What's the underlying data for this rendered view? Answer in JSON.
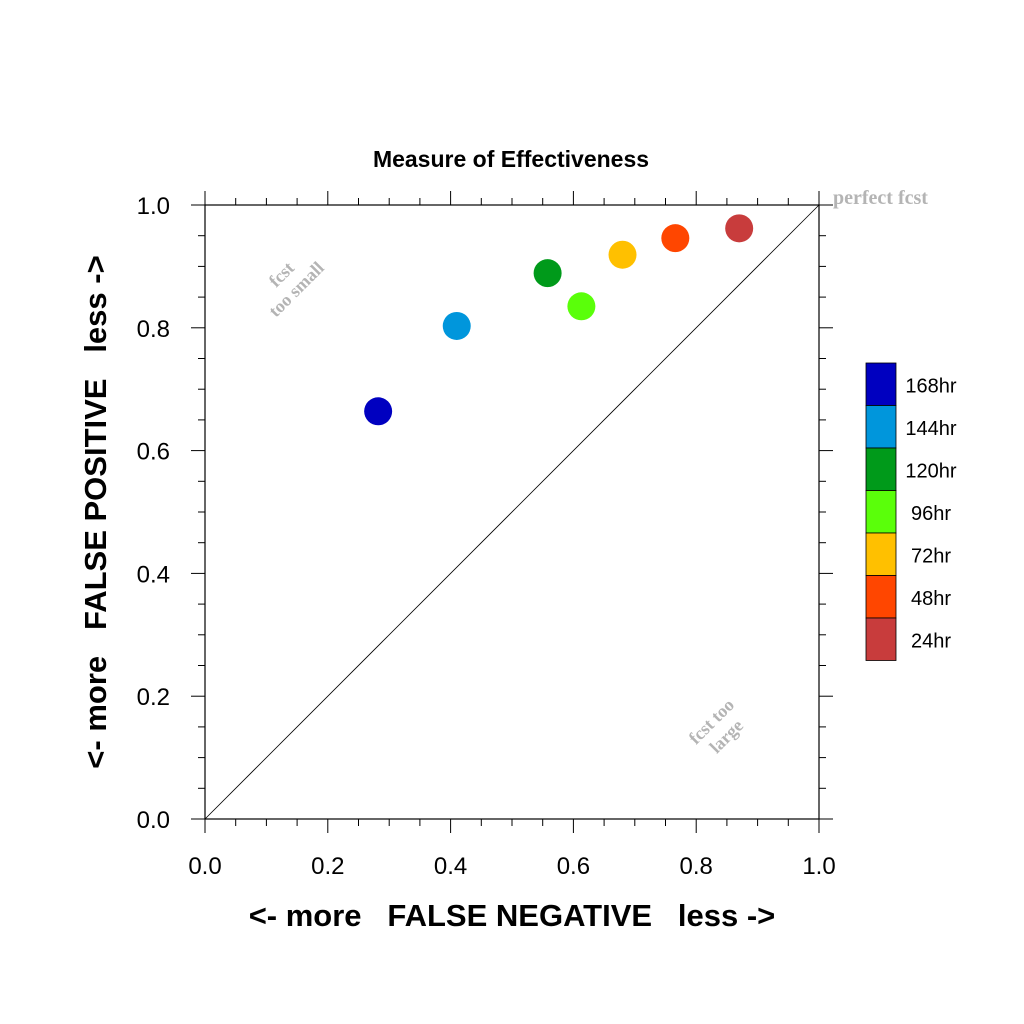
{
  "chart_data": {
    "type": "scatter",
    "title": "Measure of Effectiveness",
    "xlabel": "<- more   FALSE NEGATIVE   less ->",
    "ylabel": "<- more   FALSE POSITIVE   less ->",
    "xlim": [
      0,
      1
    ],
    "ylim": [
      0,
      1
    ],
    "xticks": [
      "0.0",
      "0.2",
      "0.4",
      "0.6",
      "0.8",
      "1.0"
    ],
    "yticks": [
      "0.0",
      "0.2",
      "0.4",
      "0.6",
      "0.8",
      "1.0"
    ],
    "grid": false,
    "reference_line": "diagonal",
    "legend_position": "right",
    "annotations": {
      "perfect": "perfect fcst",
      "too_small": [
        "fcst",
        "too small"
      ],
      "too_large": [
        "fcst too",
        "large"
      ]
    },
    "series": [
      {
        "name": "168hr",
        "color": "#0000c0",
        "x": 0.282,
        "y": 0.664
      },
      {
        "name": "144hr",
        "color": "#0096dc",
        "x": 0.41,
        "y": 0.803
      },
      {
        "name": "120hr",
        "color": "#009a1a",
        "x": 0.558,
        "y": 0.889
      },
      {
        "name": "96hr",
        "color": "#5aff0a",
        "x": 0.613,
        "y": 0.835
      },
      {
        "name": "72hr",
        "color": "#ffc000",
        "x": 0.68,
        "y": 0.919
      },
      {
        "name": "48hr",
        "color": "#ff4600",
        "x": 0.766,
        "y": 0.946
      },
      {
        "name": "24hr",
        "color": "#c83c3c",
        "x": 0.87,
        "y": 0.962
      }
    ]
  }
}
